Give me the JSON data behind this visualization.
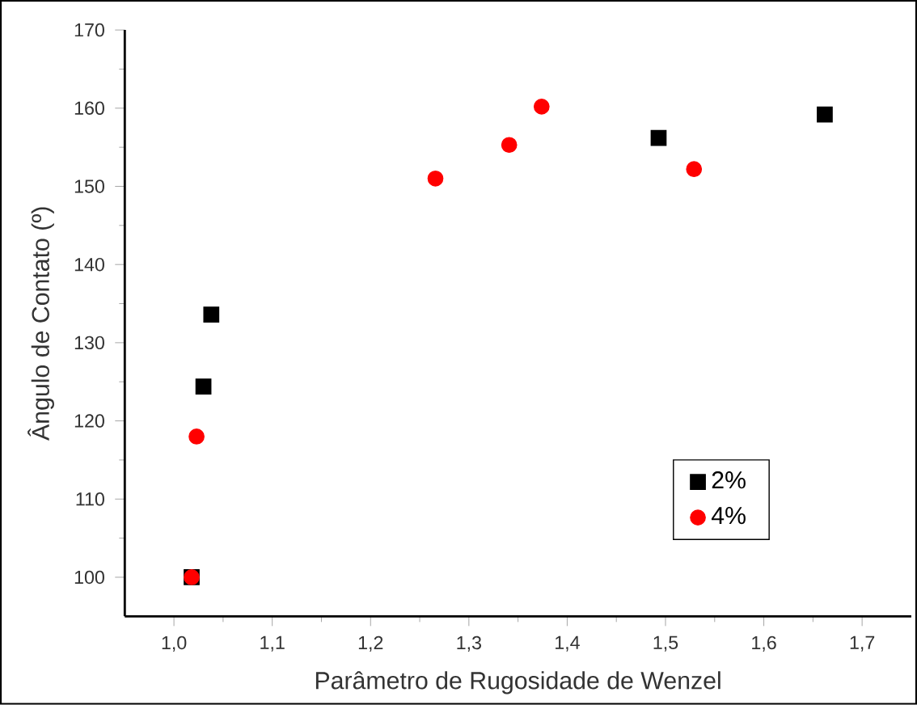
{
  "chart_data": {
    "type": "scatter",
    "xlabel": "Parâmetro de Rugosidade de Wenzel",
    "ylabel": "Ângulo de Contato (º)",
    "xlim": [
      0.95,
      1.75
    ],
    "ylim": [
      95,
      170
    ],
    "xticks": [
      {
        "value": 1.0,
        "label": "1,0"
      },
      {
        "value": 1.1,
        "label": "1,1"
      },
      {
        "value": 1.2,
        "label": "1,2"
      },
      {
        "value": 1.3,
        "label": "1,3"
      },
      {
        "value": 1.4,
        "label": "1,4"
      },
      {
        "value": 1.5,
        "label": "1,5"
      },
      {
        "value": 1.6,
        "label": "1,6"
      },
      {
        "value": 1.7,
        "label": "1,7"
      }
    ],
    "yticks": [
      100,
      110,
      120,
      130,
      140,
      150,
      160,
      170
    ],
    "grid": false,
    "legend": "bottom right",
    "series": [
      {
        "name": "2%",
        "color": "#000000",
        "marker": "square",
        "x": [
          1.018,
          1.03,
          1.038,
          1.493,
          1.662
        ],
        "values": [
          100,
          124.4,
          133.6,
          156.2,
          159.2
        ]
      },
      {
        "name": "4%",
        "color": "#ff0000",
        "marker": "circle",
        "x": [
          1.018,
          1.023,
          1.266,
          1.341,
          1.374,
          1.529
        ],
        "values": [
          100,
          118.0,
          151.0,
          155.3,
          160.2,
          152.2
        ]
      }
    ]
  }
}
